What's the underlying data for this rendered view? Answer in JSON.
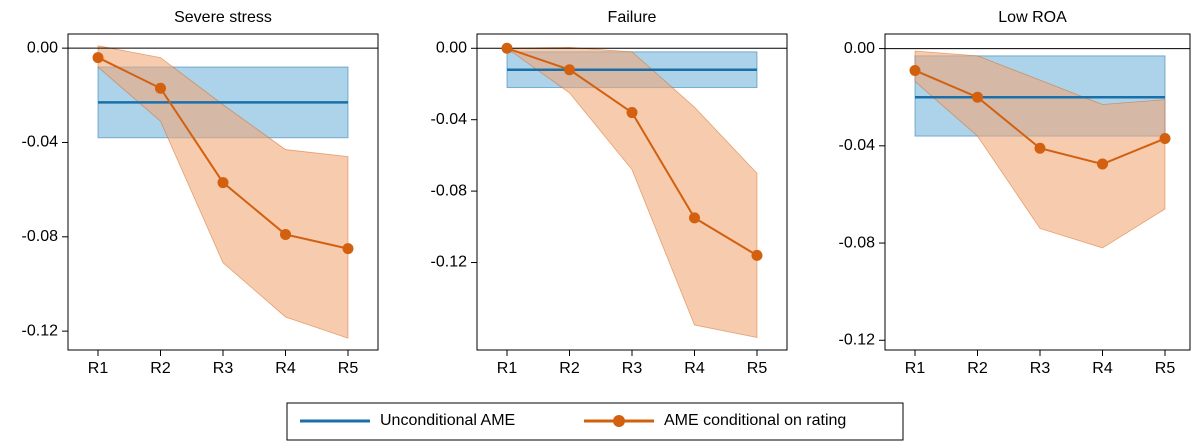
{
  "chart_data": [
    {
      "type": "line",
      "title": "Severe stress",
      "categories": [
        "R1",
        "R2",
        "R3",
        "R4",
        "R5"
      ],
      "ylim": [
        -0.128,
        0.006
      ],
      "yticks": [
        {
          "value": 0,
          "label": "0.00"
        },
        -0.04,
        -0.08,
        -0.12
      ],
      "zero_line": true,
      "series": [
        {
          "name": "Unconditional AME",
          "color": "#1a6fa8",
          "band_color": "#6aaed9",
          "value": -0.023,
          "lower": -0.038,
          "upper": -0.008
        },
        {
          "name": "AME conditional on rating",
          "color": "#d2600f",
          "band_color": "#f0a878",
          "values": [
            -0.004,
            -0.017,
            -0.057,
            -0.079,
            -0.085
          ],
          "lower": [
            -0.008,
            -0.031,
            -0.091,
            -0.114,
            -0.123
          ],
          "upper": [
            0.001,
            -0.004,
            -0.024,
            -0.043,
            -0.046
          ]
        }
      ]
    },
    {
      "type": "line",
      "title": "Failure",
      "categories": [
        "R1",
        "R2",
        "R3",
        "R4",
        "R5"
      ],
      "ylim": [
        -0.169,
        0.008
      ],
      "yticks": [
        {
          "value": 0,
          "label": "0.00"
        },
        -0.04,
        -0.08,
        -0.12
      ],
      "zero_line": true,
      "series": [
        {
          "color": "#1a6fa8",
          "band_color": "#6aaed9",
          "value": -0.012,
          "lower": -0.022,
          "upper": -0.002
        },
        {
          "color": "#d2600f",
          "band_color": "#f0a878",
          "values": [
            0,
            -0.012,
            -0.036,
            -0.095,
            -0.116
          ],
          "lower": [
            0,
            -0.025,
            -0.068,
            -0.155,
            -0.162
          ],
          "upper": [
            0,
            0.0005,
            -0.002,
            -0.033,
            -0.07
          ]
        }
      ]
    },
    {
      "type": "line",
      "title": "Low ROA",
      "categories": [
        "R1",
        "R2",
        "R3",
        "R4",
        "R5"
      ],
      "ylim": [
        -0.124,
        0.006
      ],
      "yticks": [
        {
          "value": 0,
          "label": "0.00"
        },
        -0.04,
        -0.08,
        -0.12
      ],
      "zero_line": true,
      "series": [
        {
          "color": "#1a6fa8",
          "band_color": "#6aaed9",
          "value": -0.02,
          "lower": -0.036,
          "upper": -0.003
        },
        {
          "color": "#d2600f",
          "band_color": "#f0a878",
          "values": [
            -0.009,
            -0.02,
            -0.041,
            -0.0475,
            -0.037
          ],
          "lower": [
            -0.0135,
            -0.036,
            -0.074,
            -0.082,
            -0.066
          ],
          "upper": [
            -0.001,
            -0.003,
            -0.013,
            -0.023,
            -0.021
          ]
        }
      ]
    }
  ]
}
